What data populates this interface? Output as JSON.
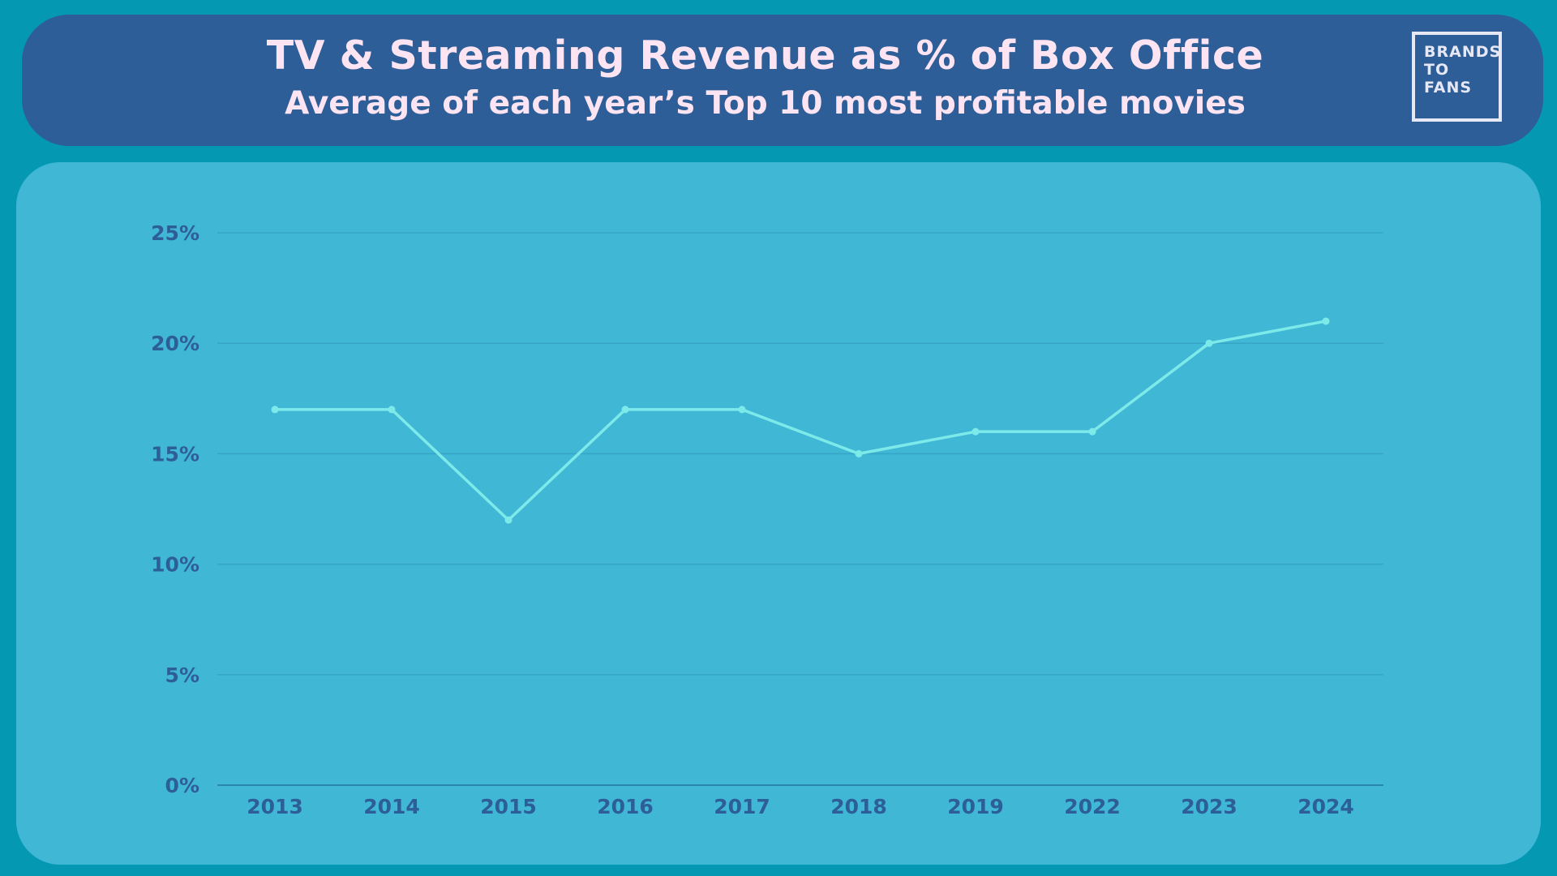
{
  "header": {
    "title": "TV & Streaming Revenue as % of Box Office",
    "subtitle": "Average of each year’s Top 10 most profitable movies",
    "logo_lines": [
      "BRANDS",
      "TO",
      "FANS"
    ]
  },
  "colors": {
    "background": "#0598b3",
    "header_bg": "#2d5e97",
    "panel_bg": "#40b7d5",
    "line": "#7deaea",
    "tick_text": "#2d5e97",
    "title_text": "#fce4f2"
  },
  "chart_data": {
    "type": "line",
    "title": "TV & Streaming Revenue as % of Box Office",
    "subtitle": "Average of each year’s Top 10 most profitable movies",
    "categories": [
      "2013",
      "2014",
      "2015",
      "2016",
      "2017",
      "2018",
      "2019",
      "2022",
      "2023",
      "2024"
    ],
    "series": [
      {
        "values": [
          17,
          17,
          12,
          17,
          17,
          15,
          16,
          16,
          20,
          21
        ]
      }
    ],
    "ylim": [
      0,
      25
    ],
    "yticks": [
      0,
      5,
      10,
      15,
      20,
      25
    ],
    "ytick_labels": [
      "0%",
      "5%",
      "10%",
      "15%",
      "20%",
      "25%"
    ],
    "grid": true,
    "legend": "none"
  }
}
